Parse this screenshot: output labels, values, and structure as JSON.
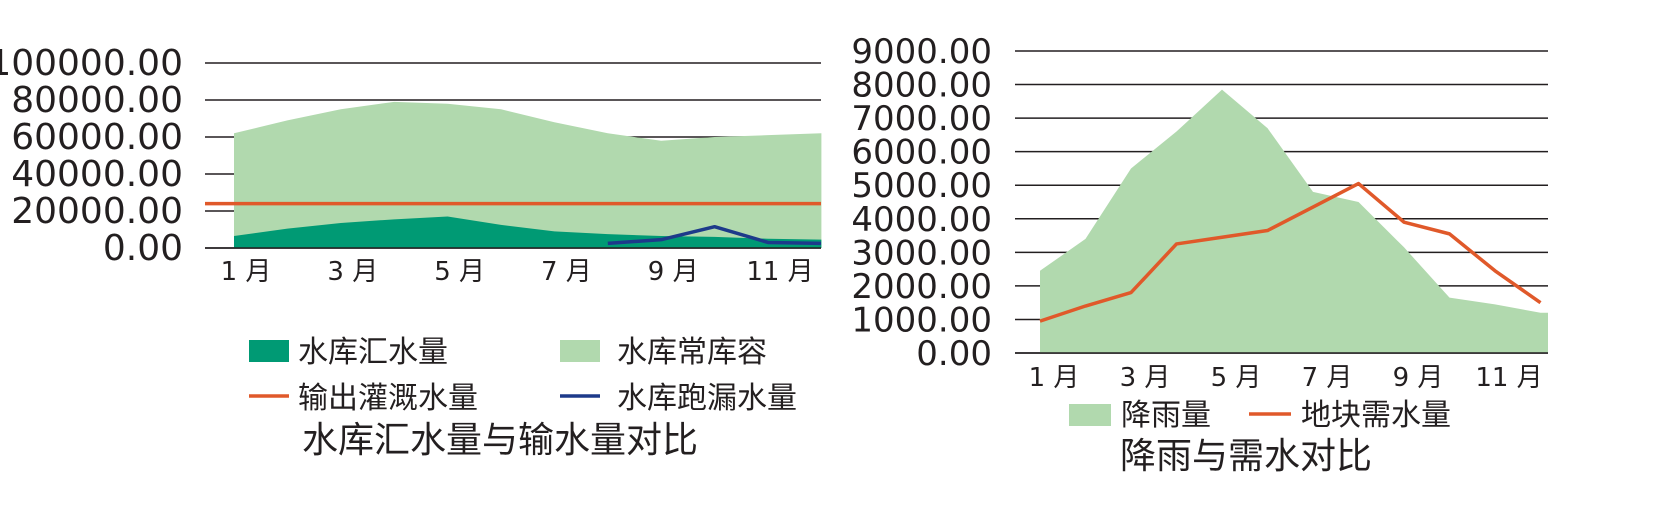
{
  "colors": {
    "inflow": "#009a74",
    "capacity": "#b1d9ae",
    "irrigation": "#e0592a",
    "leakage": "#1d3a8a",
    "rainfall": "#b1d9ae",
    "demand": "#e0592a",
    "grid": "#231f20"
  },
  "chart_data": [
    {
      "type": "area",
      "title": "水库汇水量与输水量对比",
      "categories": [
        "1月",
        "2月",
        "3月",
        "4月",
        "5月",
        "6月",
        "7月",
        "8月",
        "9月",
        "10月",
        "11月",
        "12月"
      ],
      "x_tick_labels": [
        "1 月",
        "3 月",
        "5 月",
        "7 月",
        "9 月",
        "11 月"
      ],
      "y_tick_labels": [
        "0.00",
        "20000.00",
        "40000.00",
        "60000.00",
        "80000.00",
        "100000.00"
      ],
      "ylim": [
        0,
        100000
      ],
      "grid": true,
      "legend_position": "bottom",
      "series": [
        {
          "name": "水库常库容",
          "kind": "area",
          "color_key": "capacity",
          "values": [
            62000,
            69000,
            75000,
            79000,
            78000,
            75000,
            68000,
            62000,
            58000,
            60000,
            61000,
            62000
          ]
        },
        {
          "name": "水库汇水量",
          "kind": "area",
          "color_key": "inflow",
          "values": [
            6500,
            10500,
            13500,
            15500,
            17000,
            12500,
            9000,
            7500,
            6500,
            6000,
            5000,
            4500
          ]
        },
        {
          "name": "输出灌溉水量",
          "kind": "line",
          "color_key": "irrigation",
          "values": [
            24000,
            24000,
            24000,
            24000,
            24000,
            24000,
            24000,
            24000,
            24000,
            24000,
            24000,
            24000
          ]
        },
        {
          "name": "水库跑漏水量",
          "kind": "line",
          "color_key": "leakage",
          "values": [
            null,
            null,
            null,
            null,
            null,
            null,
            null,
            2500,
            4500,
            11500,
            3000,
            2500
          ]
        }
      ],
      "legend": [
        {
          "label": "水库汇水量",
          "kind": "area",
          "color_key": "inflow"
        },
        {
          "label": "水库常库容",
          "kind": "area",
          "color_key": "capacity"
        },
        {
          "label": "输出灌溉水量",
          "kind": "line",
          "color_key": "irrigation"
        },
        {
          "label": "水库跑漏水量",
          "kind": "line",
          "color_key": "leakage"
        }
      ]
    },
    {
      "type": "area",
      "title": "降雨与需水对比",
      "categories": [
        "1月",
        "2月",
        "3月",
        "4月",
        "5月",
        "6月",
        "7月",
        "8月",
        "9月",
        "10月",
        "11月",
        "12月"
      ],
      "x_tick_labels": [
        "1 月",
        "3 月",
        "5 月",
        "7 月",
        "9 月",
        "11 月"
      ],
      "y_tick_labels": [
        "0.00",
        "1000.00",
        "2000.00",
        "3000.00",
        "4000.00",
        "5000.00",
        "6000.00",
        "7000.00",
        "8000.00",
        "9000.00"
      ],
      "ylim": [
        0,
        9000
      ],
      "grid": true,
      "legend_position": "bottom",
      "series": [
        {
          "name": "降雨量",
          "kind": "area",
          "color_key": "rainfall",
          "values": [
            2450,
            3400,
            5500,
            6600,
            7850,
            6700,
            4800,
            4500,
            3150,
            1650,
            1450,
            1200
          ]
        },
        {
          "name": "地块需水量",
          "kind": "line",
          "color_key": "demand",
          "values": [
            950,
            1400,
            1800,
            3250,
            3450,
            3650,
            4350,
            5050,
            3900,
            3550,
            2450,
            1500
          ]
        }
      ],
      "legend": [
        {
          "label": "降雨量",
          "kind": "area",
          "color_key": "rainfall"
        },
        {
          "label": "地块需水量",
          "kind": "line",
          "color_key": "demand"
        }
      ]
    }
  ]
}
